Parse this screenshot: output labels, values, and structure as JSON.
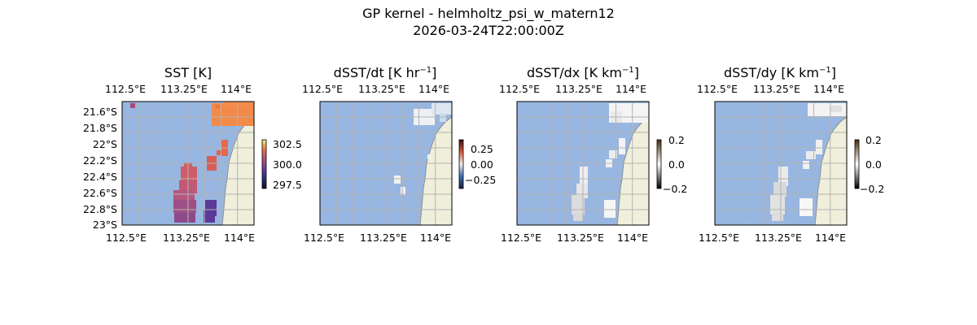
{
  "figure": {
    "title_line1": "GP kernel - helmholtz_psi_w_matern12",
    "title_line2": "2026-03-24T22:00:00Z"
  },
  "colors": {
    "ocean": "#97b6e1",
    "land": "#efefdb",
    "coast": "#8f8f8f",
    "grid": "#b3b3b3"
  },
  "panels": [
    {
      "id": "sst",
      "title": "SST [K]",
      "top_ticks": [
        "112.5°E",
        "113.25°E",
        "114°E"
      ],
      "bottom_ticks": [
        "112.5°E",
        "113.25°E",
        "114°E"
      ],
      "lat_ticks": [
        "21.6°S",
        "21.8°S",
        "22°S",
        "22.2°S",
        "22.4°S",
        "22.6°S",
        "22.8°S",
        "23°S"
      ],
      "colorbar": {
        "ticks": [
          "302.5",
          "300.0",
          "297.5"
        ],
        "colormap": "thermal"
      }
    },
    {
      "id": "dsst-dt",
      "title": "dSST/dt [K hr",
      "title_exp": "−1",
      "title_end": "]",
      "top_ticks": [
        "112.5°E",
        "113.25°E",
        "114°E"
      ],
      "bottom_ticks": [
        "112.5°E",
        "113.25°E",
        "114°E"
      ],
      "colorbar": {
        "ticks": [
          "0.25",
          "0.00",
          "−0.25"
        ],
        "colormap": "diverging"
      }
    },
    {
      "id": "dsst-dx",
      "title": "dSST/dx [K km",
      "title_exp": "−1",
      "title_end": "]",
      "top_ticks": [
        "112.5°E",
        "113.25°E",
        "114°E"
      ],
      "bottom_ticks": [
        "112.5°E",
        "113.25°E",
        "114°E"
      ],
      "colorbar": {
        "ticks": [
          "0.2",
          "0.0",
          "−0.2"
        ],
        "colormap": "grayscale"
      }
    },
    {
      "id": "dsst-dy",
      "title": "dSST/dy [K km",
      "title_exp": "−1",
      "title_end": "]",
      "top_ticks": [
        "112.5°E",
        "113.25°E",
        "114°E"
      ],
      "bottom_ticks": [
        "112.5°E",
        "113.25°E",
        "114°E"
      ],
      "colorbar": {
        "ticks": [
          "0.2",
          "0.0",
          "−0.2"
        ],
        "colormap": "grayscale"
      }
    }
  ]
}
